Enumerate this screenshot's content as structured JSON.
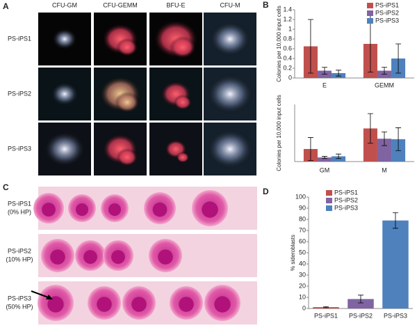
{
  "panels": {
    "a": "A",
    "b": "B",
    "c": "C",
    "d": "D"
  },
  "panel_a": {
    "columns": [
      "CFU-GM",
      "CFU-GEMM",
      "BFU-E",
      "CFU-M"
    ],
    "rows": [
      "PS-iPS1",
      "PS-iPS2",
      "PS-iPS3"
    ]
  },
  "panel_c": {
    "rows": [
      {
        "line": "PS-iPS1",
        "sub": "(0% HP)"
      },
      {
        "line": "PS-iPS2",
        "sub": "(10% HP)"
      },
      {
        "line": "PS-iPS3",
        "sub": "(50% HP)"
      }
    ]
  },
  "chart_data": [
    {
      "type": "bar",
      "ylabel": "Colonies per 10,000 input cells",
      "categories": [
        "E",
        "GEMM"
      ],
      "series": [
        {
          "name": "PS-iPS1",
          "color": "#c0504d",
          "values": [
            0.65,
            0.7
          ],
          "errors": [
            0.55,
            0.58
          ]
        },
        {
          "name": "PS-iPS2",
          "color": "#8064a2",
          "values": [
            0.15,
            0.15
          ],
          "errors": [
            0.07,
            0.07
          ]
        },
        {
          "name": "PS-iPS3",
          "color": "#4f81bd",
          "values": [
            0.1,
            0.4
          ],
          "errors": [
            0.06,
            0.3
          ]
        }
      ],
      "ylim": [
        0,
        1.4
      ],
      "yticks": [
        0,
        0.2,
        0.4,
        0.6,
        0.8,
        1,
        1.2,
        1.4
      ],
      "legend": "top-right"
    },
    {
      "type": "bar",
      "ylabel": "Colonies per 10,000 input cells",
      "categories": [
        "GM",
        "M"
      ],
      "series": [
        {
          "name": "PS-iPS1",
          "color": "#c0504d",
          "values": [
            5.5,
            14.5
          ],
          "errors": [
            5,
            6.5
          ]
        },
        {
          "name": "PS-iPS2",
          "color": "#8064a2",
          "values": [
            1.8,
            10
          ],
          "errors": [
            0.5,
            3
          ]
        },
        {
          "name": "PS-iPS3",
          "color": "#4f81bd",
          "values": [
            2.3,
            9.8
          ],
          "errors": [
            1,
            5
          ]
        }
      ],
      "ylim": [
        0,
        25
      ]
    },
    {
      "type": "bar",
      "ylabel": "% sideroblasts",
      "categories": [
        "PS-iPS1",
        "PS-iPS2",
        "PS-iPS3"
      ],
      "values": [
        1.2,
        8.5,
        79
      ],
      "errors": [
        0.5,
        3.5,
        7
      ],
      "colors": [
        "#c0504d",
        "#8064a2",
        "#4f81bd"
      ],
      "ylim": [
        0,
        100
      ],
      "yticks": [
        0,
        10,
        20,
        30,
        40,
        50,
        60,
        70,
        80,
        90,
        100
      ],
      "legend": "top-left"
    }
  ]
}
